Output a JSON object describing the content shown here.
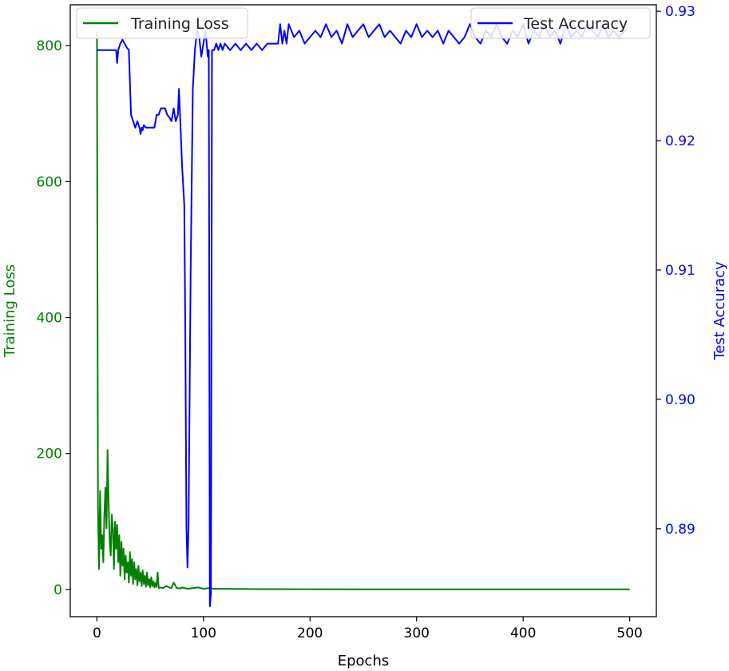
{
  "colors": {
    "loss": "#008000",
    "acc": "#0000ff",
    "axis": "#000000"
  },
  "chart_data": {
    "type": "line",
    "xlabel": "Epochs",
    "ylabel_left": "Training Loss",
    "ylabel_right": "Test Accuracy",
    "xlim": [
      -25,
      525
    ],
    "ylim_left": [
      -40,
      860
    ],
    "ylim_right": [
      0.8832,
      0.9305
    ],
    "x_ticks": [
      0,
      100,
      200,
      300,
      400,
      500
    ],
    "x_tick_labels": [
      "0",
      "100",
      "200",
      "300",
      "400",
      "500"
    ],
    "y_left_ticks": [
      0,
      200,
      400,
      600,
      800
    ],
    "y_left_tick_labels": [
      "0",
      "200",
      "400",
      "600",
      "800"
    ],
    "y_right_ticks": [
      0.89,
      0.9,
      0.91,
      0.92,
      0.93
    ],
    "y_right_tick_labels": [
      "0.89",
      "0.90",
      "0.91",
      "0.92",
      "0.93"
    ],
    "legend": [
      {
        "name": "Training Loss",
        "position": "upper-left"
      },
      {
        "name": "Test Accuracy",
        "position": "upper-right"
      }
    ],
    "grid": false,
    "series": [
      {
        "name": "Training Loss",
        "axis": "left",
        "x": [
          0,
          1,
          2,
          3,
          4,
          5,
          6,
          7,
          8,
          9,
          10,
          11,
          12,
          13,
          14,
          15,
          16,
          17,
          18,
          19,
          20,
          21,
          22,
          23,
          24,
          25,
          26,
          27,
          28,
          29,
          30,
          31,
          32,
          33,
          34,
          35,
          36,
          37,
          38,
          39,
          40,
          41,
          42,
          43,
          44,
          45,
          46,
          47,
          48,
          49,
          50,
          51,
          52,
          53,
          54,
          55,
          56,
          57,
          58,
          60,
          62,
          65,
          68,
          70,
          72,
          75,
          78,
          80,
          85,
          90,
          95,
          100,
          105,
          110,
          120,
          150,
          200,
          250,
          300,
          350,
          400,
          450,
          500
        ],
        "y": [
          820,
          120,
          30,
          145,
          60,
          80,
          40,
          110,
          150,
          90,
          205,
          130,
          70,
          50,
          110,
          90,
          30,
          100,
          60,
          95,
          40,
          80,
          20,
          70,
          35,
          60,
          15,
          50,
          25,
          40,
          10,
          55,
          20,
          45,
          8,
          40,
          15,
          30,
          6,
          35,
          12,
          25,
          5,
          28,
          8,
          20,
          4,
          25,
          6,
          15,
          3,
          18,
          5,
          12,
          3,
          10,
          4,
          25,
          2,
          3,
          2,
          5,
          3,
          2,
          10,
          2,
          1.5,
          3,
          1,
          2,
          3,
          1,
          2,
          1,
          1,
          0.5,
          0.4,
          0.3,
          0.3,
          0.2,
          0.2,
          0.2,
          0.2
        ]
      },
      {
        "name": "Test Accuracy",
        "axis": "right",
        "x": [
          0,
          10,
          18,
          19,
          20,
          22,
          24,
          26,
          28,
          30,
          32,
          36,
          38,
          40,
          41,
          42,
          43,
          44,
          46,
          48,
          50,
          52,
          54,
          56,
          58,
          60,
          62,
          64,
          66,
          68,
          70,
          72,
          74,
          76,
          77,
          78,
          80,
          82,
          83,
          84,
          85,
          86,
          88,
          90,
          92,
          94,
          96,
          98,
          100,
          102,
          103,
          104,
          105,
          106,
          107,
          108,
          110,
          112,
          114,
          116,
          118,
          120,
          125,
          130,
          135,
          140,
          145,
          150,
          155,
          160,
          165,
          170,
          172,
          174,
          176,
          178,
          180,
          185,
          190,
          195,
          200,
          205,
          210,
          215,
          220,
          225,
          230,
          235,
          240,
          245,
          250,
          255,
          260,
          265,
          270,
          275,
          280,
          285,
          290,
          295,
          300,
          305,
          310,
          315,
          320,
          325,
          330,
          335,
          340,
          345,
          350,
          355,
          360,
          365,
          370,
          375,
          380,
          385,
          390,
          395,
          400,
          405,
          410,
          415,
          420,
          425,
          430,
          435,
          440,
          445,
          450,
          455,
          460,
          465,
          470,
          475,
          480,
          485,
          490,
          495,
          498
        ],
        "y": [
          0.927,
          0.927,
          0.927,
          0.926,
          0.927,
          0.9275,
          0.9278,
          0.9275,
          0.9272,
          0.927,
          0.922,
          0.921,
          0.9215,
          0.921,
          0.9205,
          0.921,
          0.9208,
          0.9212,
          0.921,
          0.921,
          0.921,
          0.921,
          0.921,
          0.922,
          0.922,
          0.9225,
          0.9225,
          0.9225,
          0.922,
          0.9218,
          0.9215,
          0.9225,
          0.9215,
          0.922,
          0.924,
          0.922,
          0.918,
          0.915,
          0.905,
          0.89,
          0.887,
          0.89,
          0.91,
          0.924,
          0.927,
          0.9285,
          0.928,
          0.9265,
          0.9275,
          0.9285,
          0.9275,
          0.9265,
          0.927,
          0.884,
          0.885,
          0.927,
          0.927,
          0.9275,
          0.927,
          0.9275,
          0.927,
          0.9275,
          0.927,
          0.9275,
          0.927,
          0.9275,
          0.927,
          0.9275,
          0.927,
          0.9275,
          0.9275,
          0.9275,
          0.929,
          0.9275,
          0.9285,
          0.9275,
          0.929,
          0.928,
          0.9285,
          0.9275,
          0.928,
          0.9285,
          0.928,
          0.929,
          0.928,
          0.9285,
          0.9275,
          0.929,
          0.928,
          0.9285,
          0.929,
          0.928,
          0.9285,
          0.929,
          0.928,
          0.9285,
          0.928,
          0.9275,
          0.9285,
          0.928,
          0.929,
          0.928,
          0.9285,
          0.928,
          0.9285,
          0.9275,
          0.9285,
          0.928,
          0.9275,
          0.928,
          0.929,
          0.928,
          0.9275,
          0.9285,
          0.928,
          0.929,
          0.928,
          0.9275,
          0.9285,
          0.928,
          0.929,
          0.9275,
          0.9285,
          0.928,
          0.929,
          0.928,
          0.9285,
          0.9275,
          0.929,
          0.928,
          0.9285,
          0.928,
          0.929,
          0.9285,
          0.928,
          0.929,
          0.928,
          0.9285,
          0.928,
          0.9285,
          0.9285
        ]
      }
    ]
  }
}
